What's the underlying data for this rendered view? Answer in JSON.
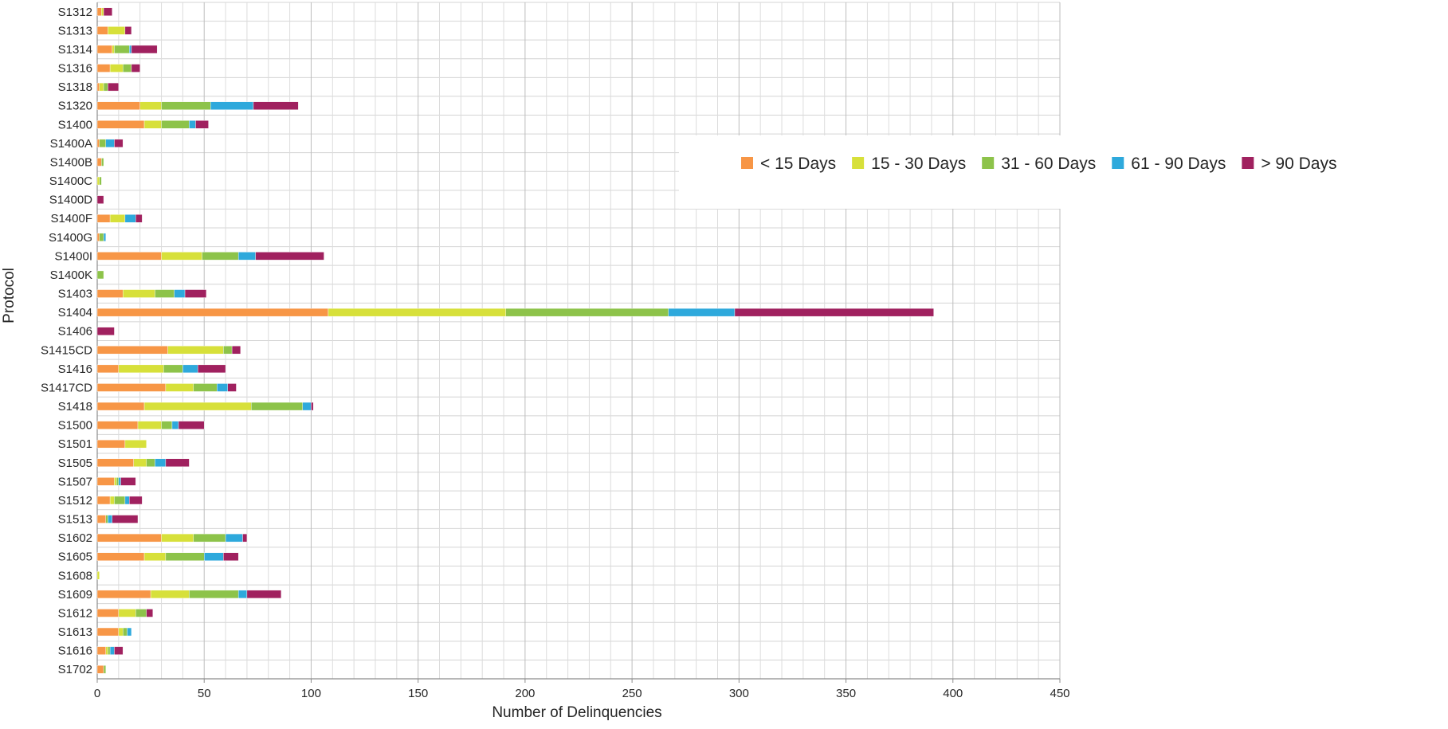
{
  "chart_data": {
    "type": "bar",
    "orientation": "horizontal",
    "stacked": true,
    "title": "",
    "xlabel": "Number of Delinquencies",
    "ylabel": "Protocol",
    "xlim": [
      0,
      450
    ],
    "xticks": [
      "0",
      "50",
      "100",
      "150",
      "200",
      "250",
      "300",
      "350",
      "400",
      "450"
    ],
    "grid": true,
    "legend_position": "right",
    "categories": [
      "S1312",
      "S1313",
      "S1314",
      "S1316",
      "S1318",
      "S1320",
      "S1400",
      "S1400A",
      "S1400B",
      "S1400C",
      "S1400D",
      "S1400F",
      "S1400G",
      "S1400I",
      "S1400K",
      "S1403",
      "S1404",
      "S1406",
      "S1415CD",
      "S1416",
      "S1417CD",
      "S1418",
      "S1500",
      "S1501",
      "S1505",
      "S1507",
      "S1512",
      "S1513",
      "S1602",
      "S1605",
      "S1608",
      "S1609",
      "S1612",
      "S1613",
      "S1616",
      "S1702"
    ],
    "series": [
      {
        "name": "< 15 Days",
        "color": "#f79646",
        "values": [
          2,
          5,
          7,
          6,
          1,
          20,
          22,
          1,
          2,
          0,
          0,
          6,
          1,
          30,
          0,
          12,
          108,
          0,
          33,
          10,
          32,
          22,
          19,
          13,
          17,
          8,
          6,
          4,
          30,
          22,
          0,
          25,
          10,
          10,
          4,
          3
        ]
      },
      {
        "name": "15 - 30 Days",
        "color": "#d7e03a",
        "values": [
          1,
          8,
          1,
          6,
          2,
          10,
          8,
          0,
          0,
          1,
          0,
          7,
          0,
          19,
          0,
          15,
          83,
          0,
          26,
          21,
          13,
          50,
          11,
          10,
          6,
          1,
          2,
          0,
          15,
          10,
          1,
          18,
          8,
          2,
          1,
          0
        ]
      },
      {
        "name": "31 - 60 Days",
        "color": "#8dc34a",
        "values": [
          0,
          0,
          7,
          4,
          2,
          23,
          13,
          3,
          1,
          1,
          0,
          0,
          2,
          17,
          3,
          9,
          76,
          0,
          4,
          9,
          11,
          24,
          5,
          0,
          4,
          1,
          5,
          1,
          15,
          18,
          0,
          23,
          5,
          2,
          1,
          1
        ]
      },
      {
        "name": "61 - 90 Days",
        "color": "#2ea9dc",
        "values": [
          0,
          0,
          1,
          0,
          0,
          20,
          3,
          4,
          0,
          0,
          0,
          5,
          1,
          8,
          0,
          5,
          31,
          0,
          0,
          7,
          5,
          4,
          3,
          0,
          5,
          1,
          2,
          2,
          8,
          9,
          0,
          4,
          0,
          2,
          2,
          0
        ]
      },
      {
        "name": "> 90 Days",
        "color": "#a0215f",
        "values": [
          4,
          3,
          12,
          4,
          5,
          21,
          6,
          4,
          0,
          0,
          3,
          3,
          0,
          32,
          0,
          10,
          93,
          8,
          4,
          13,
          4,
          1,
          12,
          0,
          11,
          7,
          6,
          12,
          2,
          7,
          0,
          16,
          3,
          0,
          4,
          0
        ]
      }
    ]
  }
}
